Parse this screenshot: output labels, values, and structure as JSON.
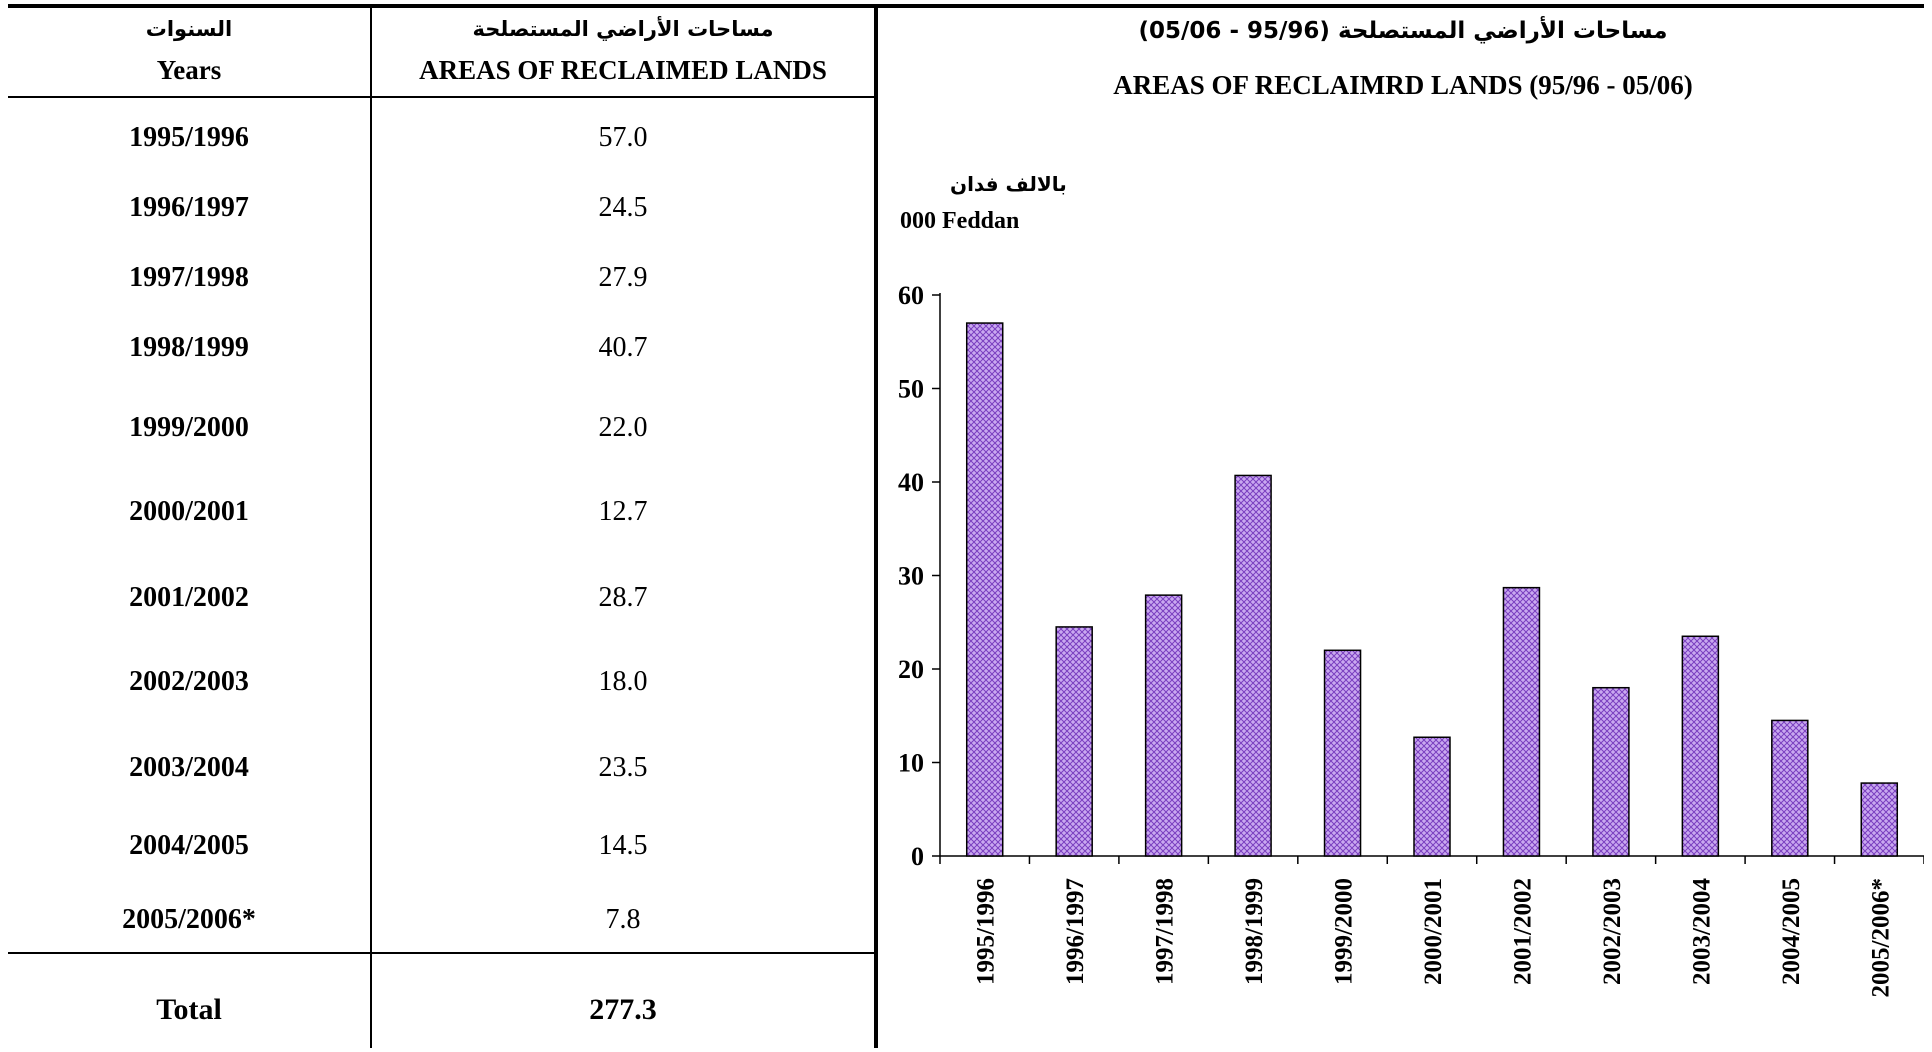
{
  "table": {
    "header": {
      "years_ar": "السنوات",
      "years_en": "Years",
      "areas_ar": "مساحات الأراضي المستصلحة",
      "areas_en": "AREAS OF  RECLAIMED LANDS"
    },
    "rows": [
      {
        "year": "1995/1996",
        "value": "57.0"
      },
      {
        "year": "1996/1997",
        "value": "24.5"
      },
      {
        "year": "1997/1998",
        "value": "27.9"
      },
      {
        "year": "1998/1999",
        "value": "40.7"
      },
      {
        "year": "1999/2000",
        "value": "22.0"
      },
      {
        "year": "2000/2001",
        "value": "12.7"
      },
      {
        "year": "2001/2002",
        "value": "28.7"
      },
      {
        "year": "2002/2003",
        "value": "18.0"
      },
      {
        "year": "2003/2004",
        "value": "23.5"
      },
      {
        "year": "2004/2005",
        "value": "14.5"
      },
      {
        "year": "2005/2006*",
        "value": "7.8"
      }
    ],
    "total_label": "Total",
    "total_value": "277.3"
  },
  "chart_data": {
    "type": "bar",
    "title_ar": "مساحات الأراضي المستصلحة  (95/96 - 05/06)",
    "title": "AREAS OF RECLAIMRD LANDS (95/96 - 05/06)",
    "ylabel_ar": "بالالف فدان",
    "ylabel": "000 Feddan",
    "categories": [
      "1995/1996",
      "1996/1997",
      "1997/1998",
      "1998/1999",
      "1999/2000",
      "2000/2001",
      "2001/2002",
      "2002/2003",
      "2003/2004",
      "2004/2005",
      "2005/2006*"
    ],
    "values": [
      57.0,
      24.5,
      27.9,
      40.7,
      22.0,
      12.7,
      28.7,
      18.0,
      23.5,
      14.5,
      7.8
    ],
    "ylim": [
      0,
      60
    ],
    "yticks": [
      0,
      10,
      20,
      30,
      40,
      50,
      60
    ],
    "grid": false,
    "legend": "none",
    "bar_color": "#c9a8f0",
    "bar_pattern_color": "#7a3fc0",
    "bar_edge_color": "#000000"
  }
}
